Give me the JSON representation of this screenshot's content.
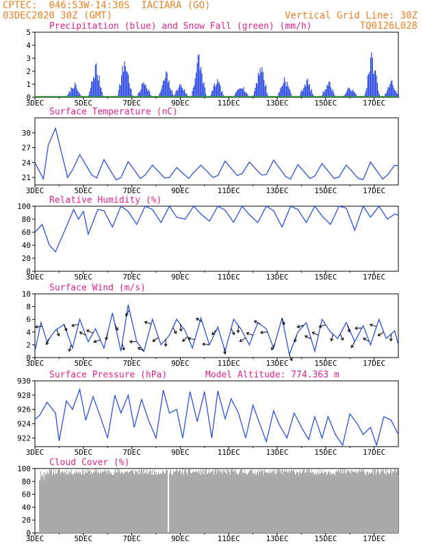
{
  "header": {
    "left_line1": "CPTEC:  046:53W-14:30S  IACIARA (GO)",
    "left_line2": "03DEC2020 30Z (GMT)",
    "right_line1": "Vertical Grid Line: 30Z",
    "right_line2": "TQ0126L028"
  },
  "colors": {
    "header_text": "#ee7f20",
    "panel_title": "#e0238a",
    "precip": "#1f3fe0",
    "snow": "#2fa52f",
    "line": "#2a4ee0",
    "cloud": "#aaaaaa"
  },
  "chart_data": [
    {
      "type": "bar",
      "title": "Precipitation (blue) and Snow Fall (green) (mm/h)",
      "x_tick_labels": [
        "3DEC",
        "5DEC",
        "7DEC",
        "9DEC",
        "11DEC",
        "13DEC",
        "15DEC",
        "17DEC"
      ],
      "y_ticks": [
        0,
        1,
        2,
        3,
        4,
        5
      ],
      "ylim": [
        0,
        5
      ],
      "series": [
        {
          "name": "Precipitation",
          "color": "#1f3fe0",
          "clusters": [
            {
              "day": 4.6,
              "peak": 1.3
            },
            {
              "day": 5.5,
              "peak": 3.0
            },
            {
              "day": 6.7,
              "peak": 3.6
            },
            {
              "day": 7.5,
              "peak": 1.6
            },
            {
              "day": 8.4,
              "peak": 2.2
            },
            {
              "day": 9.0,
              "peak": 1.3
            },
            {
              "day": 9.75,
              "peak": 3.8
            },
            {
              "day": 10.5,
              "peak": 1.6
            },
            {
              "day": 11.5,
              "peak": 1.3
            },
            {
              "day": 12.3,
              "peak": 3.2
            },
            {
              "day": 13.3,
              "peak": 1.9
            },
            {
              "day": 14.2,
              "peak": 1.7
            },
            {
              "day": 15.1,
              "peak": 1.5
            },
            {
              "day": 16.0,
              "peak": 1.0
            },
            {
              "day": 16.9,
              "peak": 4.0
            },
            {
              "day": 17.7,
              "peak": 1.5
            }
          ]
        },
        {
          "name": "Snow Fall",
          "color": "#2fa52f",
          "values": "0 throughout"
        }
      ]
    },
    {
      "type": "line",
      "title": "Surface Temperature (nC)",
      "x_tick_labels": [
        "3DEC",
        "5DEC",
        "7DEC",
        "9DEC",
        "11DEC",
        "13DEC",
        "15DEC",
        "17DEC"
      ],
      "y_ticks": [
        21,
        24,
        27,
        30
      ],
      "ylim": [
        19.5,
        33
      ],
      "series": [
        {
          "color": "#2a4ee0",
          "x_day": [
            3.0,
            3.35,
            3.55,
            3.85,
            4.35,
            4.55,
            4.85,
            5.35,
            5.55,
            5.85,
            6.35,
            6.55,
            6.85,
            7.35,
            7.55,
            7.85,
            8.35,
            8.55,
            8.85,
            9.35,
            9.55,
            9.85,
            10.35,
            10.55,
            10.85,
            11.35,
            11.55,
            11.85,
            12.35,
            12.55,
            12.85,
            13.35,
            13.55,
            13.85,
            14.35,
            14.55,
            14.85,
            15.35,
            15.55,
            15.85,
            16.35,
            16.55,
            16.85,
            17.35,
            17.55,
            17.85,
            18.0
          ],
          "values": [
            24.0,
            20.7,
            27.5,
            30.9,
            21.0,
            22.5,
            25.6,
            21.5,
            20.9,
            24.6,
            20.5,
            21.0,
            24.2,
            20.8,
            21.5,
            23.5,
            20.9,
            21.0,
            23.0,
            20.8,
            22.0,
            23.5,
            21.0,
            21.4,
            24.3,
            21.4,
            21.8,
            24.1,
            21.5,
            21.6,
            24.5,
            21.2,
            20.7,
            23.6,
            20.8,
            21.3,
            23.8,
            20.8,
            21.1,
            23.5,
            20.8,
            20.6,
            24.1,
            20.7,
            21.5,
            23.5,
            23.3
          ]
        }
      ]
    },
    {
      "type": "line",
      "title": "Relative Humidity (%)",
      "x_tick_labels": [
        "3DEC",
        "5DEC",
        "7DEC",
        "9DEC",
        "11DEC",
        "13DEC",
        "15DEC",
        "17DEC"
      ],
      "y_ticks": [
        0,
        20,
        40,
        60,
        80,
        100
      ],
      "ylim": [
        0,
        100
      ],
      "series": [
        {
          "color": "#2a4ee0",
          "x_day": [
            3.0,
            3.3,
            3.6,
            3.85,
            4.2,
            4.6,
            4.8,
            5.0,
            5.2,
            5.6,
            5.85,
            6.2,
            6.55,
            6.85,
            7.2,
            7.55,
            7.85,
            8.2,
            8.55,
            8.85,
            9.2,
            9.55,
            9.85,
            10.2,
            10.55,
            10.85,
            11.2,
            11.55,
            11.85,
            12.2,
            12.55,
            12.85,
            13.2,
            13.55,
            13.85,
            14.2,
            14.55,
            14.85,
            15.2,
            15.55,
            15.85,
            16.2,
            16.55,
            16.85,
            17.2,
            17.55,
            17.85,
            18.0
          ],
          "values": [
            60,
            72,
            40,
            30,
            60,
            95,
            80,
            92,
            57,
            95,
            93,
            68,
            100,
            92,
            72,
            100,
            95,
            75,
            100,
            83,
            80,
            100,
            88,
            77,
            100,
            94,
            75,
            100,
            87,
            75,
            100,
            93,
            68,
            100,
            95,
            75,
            100,
            85,
            72,
            100,
            97,
            63,
            100,
            83,
            100,
            80,
            88,
            86
          ]
        }
      ]
    },
    {
      "type": "line",
      "title": "Surface Wind (m/s)",
      "x_tick_labels": [
        "3DEC",
        "5DEC",
        "7DEC",
        "9DEC",
        "11DEC",
        "13DEC",
        "15DEC",
        "17DEC"
      ],
      "y_ticks": [
        0,
        2,
        4,
        6,
        8,
        10
      ],
      "ylim": [
        0,
        10
      ],
      "series": [
        {
          "color": "#2a4ee0",
          "x_day": [
            3.0,
            3.25,
            3.5,
            3.85,
            4.2,
            4.55,
            4.85,
            5.2,
            5.5,
            5.85,
            6.2,
            6.55,
            6.85,
            7.2,
            7.5,
            7.85,
            8.2,
            8.55,
            8.85,
            9.2,
            9.5,
            9.85,
            10.2,
            10.55,
            10.85,
            11.2,
            11.5,
            11.85,
            12.2,
            12.55,
            12.85,
            13.2,
            13.5,
            13.85,
            14.2,
            14.55,
            14.85,
            15.2,
            15.5,
            15.85,
            16.2,
            16.55,
            16.85,
            17.2,
            17.5,
            17.85,
            18.0
          ],
          "values": [
            1.0,
            5.5,
            2.5,
            4.3,
            5.2,
            1.5,
            6.0,
            2.5,
            4.5,
            1.5,
            7.0,
            1.0,
            8.3,
            2.5,
            1.0,
            6.0,
            2.0,
            3.5,
            6.0,
            4.2,
            1.5,
            6.2,
            2.0,
            4.8,
            1.0,
            6.0,
            4.5,
            2.0,
            5.5,
            4.5,
            1.5,
            6.2,
            0.5,
            4.0,
            5.5,
            1.0,
            6.0,
            4.0,
            3.0,
            5.5,
            2.5,
            5.0,
            2.0,
            6.0,
            3.0,
            4.2,
            2.0
          ]
        }
      ],
      "wind_arrows": "direction arrows along the series"
    },
    {
      "type": "line",
      "title": "Surface Pressure (hPa)",
      "annotation": "Model Altitude: 774.363 m",
      "x_tick_labels": [
        "3DEC",
        "5DEC",
        "7DEC",
        "9DEC",
        "11DEC",
        "13DEC",
        "15DEC",
        "17DEC"
      ],
      "y_ticks": [
        922,
        924,
        926,
        928,
        930
      ],
      "ylim": [
        920.8,
        930
      ],
      "series": [
        {
          "color": "#2a4ee0",
          "x_day": [
            3.0,
            3.2,
            3.5,
            3.85,
            4.0,
            4.3,
            4.55,
            4.85,
            5.1,
            5.4,
            5.7,
            6.0,
            6.3,
            6.55,
            6.85,
            7.1,
            7.4,
            7.7,
            8.0,
            8.3,
            8.55,
            8.85,
            9.1,
            9.4,
            9.7,
            10.0,
            10.3,
            10.55,
            10.85,
            11.1,
            11.4,
            11.7,
            12.0,
            12.3,
            12.55,
            12.85,
            13.1,
            13.4,
            13.7,
            14.0,
            14.3,
            14.55,
            14.85,
            15.1,
            15.4,
            15.7,
            16.0,
            16.3,
            16.55,
            16.85,
            17.1,
            17.4,
            17.7,
            18.0
          ],
          "values": [
            924.6,
            925.2,
            927.0,
            925.5,
            921.6,
            927.2,
            926.0,
            928.8,
            924.5,
            927.8,
            925.0,
            922.0,
            928.0,
            925.5,
            928.0,
            923.5,
            927.4,
            924.4,
            922.0,
            928.7,
            925.5,
            926.0,
            922.0,
            928.5,
            924.3,
            928.5,
            922.0,
            928.6,
            924.7,
            927.5,
            925.5,
            922.0,
            926.6,
            923.8,
            921.5,
            925.8,
            923.8,
            922.0,
            925.5,
            923.5,
            921.8,
            925.0,
            922.0,
            925.0,
            922.5,
            921.0,
            925.4,
            924.0,
            922.5,
            923.5,
            921.0,
            925.0,
            924.5,
            922.5
          ]
        }
      ]
    },
    {
      "type": "bar",
      "title": "Cloud Cover (%)",
      "x_tick_labels": [
        "3DEC",
        "5DEC",
        "7DEC",
        "9DEC",
        "11DEC",
        "13DEC",
        "15DEC",
        "17DEC"
      ],
      "y_ticks": [
        0,
        20,
        40,
        60,
        80,
        100
      ],
      "ylim": [
        0,
        100
      ],
      "series": [
        {
          "color": "#aaaaaa",
          "values": "mostly 90-100 % throughout; gap near 8.5DEC"
        }
      ]
    }
  ]
}
